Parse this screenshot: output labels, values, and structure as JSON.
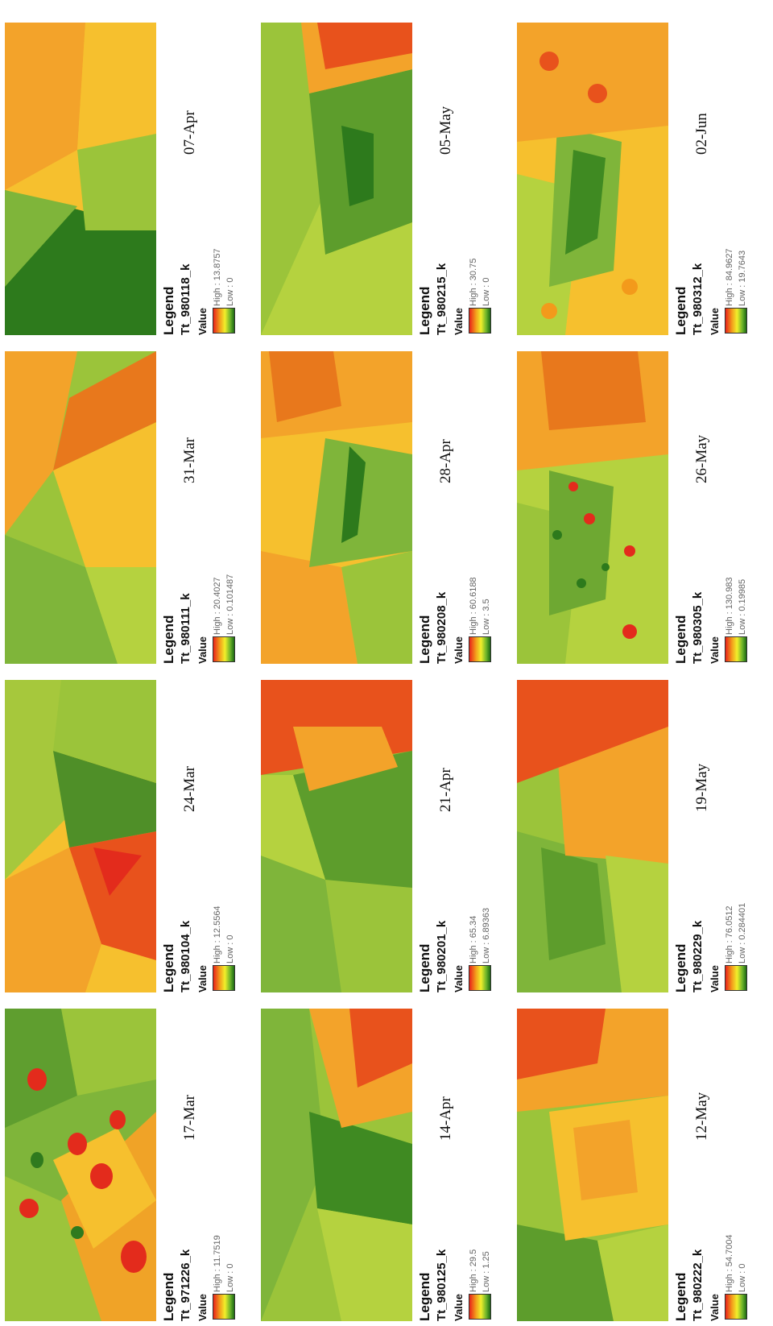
{
  "legend_title": "Legend",
  "value_label": "Value",
  "ramp_colors": [
    "#e8221a",
    "#f39a1b",
    "#f2ee2a",
    "#6fb52a",
    "#1c6a14"
  ],
  "panels": [
    {
      "layer": "Tt_971226_k",
      "high": "High : 11.7519",
      "low": "Low : 0",
      "date": "17-Mar"
    },
    {
      "layer": "Tt_980104_k",
      "high": "High : 12.5564",
      "low": "Low : 0",
      "date": "24-Mar"
    },
    {
      "layer": "Tt_980111_k",
      "high": "High : 20.4027",
      "low": "Low : 0.101487",
      "date": "31-Mar"
    },
    {
      "layer": "Tt_980118_k",
      "high": "High : 13.8757",
      "low": "Low : 0",
      "date": "07-Apr"
    },
    {
      "layer": "Tt_980125_k",
      "high": "High : 29.5",
      "low": "Low : 1.25",
      "date": "14-Apr"
    },
    {
      "layer": "Tt_980201_k",
      "high": "High : 65.34",
      "low": "Low : 6.89363",
      "date": "21-Apr"
    },
    {
      "layer": "Tt_980208_k",
      "high": "High : 60.6188",
      "low": "Low : 3.5",
      "date": "28-Apr"
    },
    {
      "layer": "Tt_980215_k",
      "high": "High : 30.75",
      "low": "Low : 0",
      "date": "05-May"
    },
    {
      "layer": "Tt_980222_k",
      "high": "High : 54.7004",
      "low": "Low : 0",
      "date": "12-May"
    },
    {
      "layer": "Tt_980229_k",
      "high": "High : 76.0512",
      "low": "Low : 0.284401",
      "date": "19-May"
    },
    {
      "layer": "Tt_980305_k",
      "high": "High : 130.983",
      "low": "Low : 0.19985",
      "date": "26-May"
    },
    {
      "layer": "Tt_980312_k",
      "high": "High : 84.9627",
      "low": "Low : 19.7643",
      "date": "02-Jun"
    }
  ]
}
